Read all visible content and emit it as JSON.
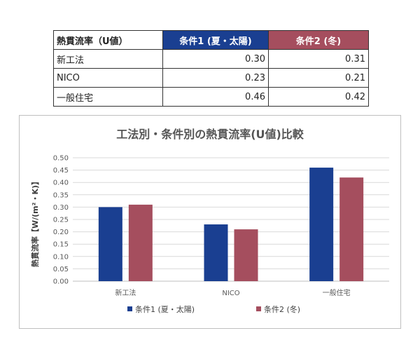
{
  "table": {
    "headers": [
      "熱貫流率（U値）",
      "条件1 (夏・太陽)",
      "条件2 (冬)"
    ],
    "header_colors": [
      "#ffffff",
      "#1a3f91",
      "#a54e5e"
    ],
    "rows": [
      {
        "name": "新工法",
        "v1": "0.30",
        "v2": "0.31"
      },
      {
        "name": "NICO",
        "v1": "0.23",
        "v2": "0.21"
      },
      {
        "name": "一般住宅",
        "v1": "0.46",
        "v2": "0.42"
      }
    ]
  },
  "chart_data": {
    "type": "bar",
    "title": "工法別・条件別の熱貫流率(U値)比較",
    "xlabel": "",
    "ylabel": "熱貫流率【W/(m²・K)】",
    "categories": [
      "新工法",
      "NICO",
      "一般住宅"
    ],
    "series": [
      {
        "name": "条件1 (夏・太陽)",
        "color": "#1a3f91",
        "values": [
          0.3,
          0.23,
          0.46
        ]
      },
      {
        "name": "条件2 (冬)",
        "color": "#a54e5e",
        "values": [
          0.31,
          0.21,
          0.42
        ]
      }
    ],
    "ylim": [
      0,
      0.5
    ],
    "yticks": [
      "0.00",
      "0.05",
      "0.10",
      "0.15",
      "0.20",
      "0.25",
      "0.30",
      "0.35",
      "0.40",
      "0.45",
      "0.50"
    ],
    "grid": true,
    "legend": "bottom"
  }
}
